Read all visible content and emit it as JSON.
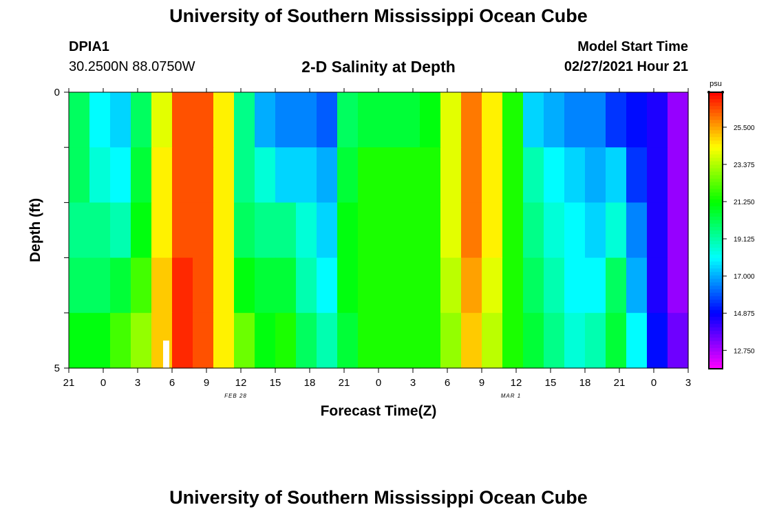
{
  "header": {
    "title": "University of Southern Mississippi Ocean Cube",
    "station": "DPIA1",
    "coordinates": "30.2500N 88.0750W",
    "subtitle": "2-D Salinity at Depth",
    "model_start_label": "Model Start Time",
    "model_start_value": "02/27/2021 Hour 21"
  },
  "footer": {
    "title": "University of Southern Mississippi Ocean Cube"
  },
  "chart_data": {
    "type": "heatmap",
    "title": "2-D Salinity at Depth",
    "xlabel": "Forecast Time(Z)",
    "ylabel": "Depth (ft)",
    "x_ticks": [
      "21",
      "0",
      "3",
      "6",
      "9",
      "12",
      "15",
      "18",
      "21",
      "0",
      "3",
      "6",
      "9",
      "12",
      "15",
      "18",
      "21",
      "0",
      "3"
    ],
    "date_labels": [
      {
        "text": "FEB 28",
        "after_tick": 4
      },
      {
        "text": "MAR 1",
        "after_tick": 12
      }
    ],
    "y_ticks": [
      "0",
      "",
      "",
      "",
      "",
      "5"
    ],
    "ylim": [
      0,
      5
    ],
    "colorbar": {
      "unit": "psu",
      "range": [
        11.7,
        27.5
      ],
      "ticks": [
        "25.500",
        "23.375",
        "21.250",
        "19.125",
        "17.000",
        "14.875",
        "12.750"
      ],
      "tick_values": [
        25.5,
        23.375,
        21.25,
        19.125,
        17.0,
        14.875,
        12.75
      ]
    },
    "hours_per_column": 3,
    "depth_layers": [
      "0-1 ft",
      "1-2 ft",
      "2-3 ft",
      "3-4 ft",
      "4-5 ft"
    ],
    "salinity_psu": [
      [
        20.0,
        18.0,
        17.5,
        20.0,
        24.0,
        26.5,
        26.5,
        24.5,
        19.5,
        17.0,
        16.5,
        16.5,
        16.0,
        20.0,
        20.5,
        20.5,
        20.5,
        21.0,
        24.0,
        26.0,
        24.5,
        21.5,
        17.5,
        17.0,
        16.5,
        16.5,
        15.5,
        15.0,
        14.5,
        13.0
      ],
      [
        20.0,
        18.5,
        18.0,
        20.5,
        24.5,
        26.5,
        26.5,
        24.5,
        19.5,
        18.5,
        17.5,
        17.5,
        17.0,
        20.5,
        21.5,
        21.5,
        21.5,
        21.5,
        24.0,
        26.0,
        24.5,
        21.5,
        19.0,
        18.0,
        17.5,
        17.0,
        17.5,
        15.5,
        14.5,
        13.0
      ],
      [
        19.5,
        19.5,
        19.0,
        21.0,
        24.5,
        26.5,
        26.5,
        24.5,
        20.0,
        19.5,
        19.5,
        18.5,
        17.5,
        21.0,
        21.5,
        21.5,
        21.5,
        21.5,
        24.0,
        26.0,
        24.5,
        21.5,
        19.5,
        18.5,
        18.0,
        17.5,
        18.5,
        16.5,
        14.5,
        13.0
      ],
      [
        20.0,
        20.0,
        20.5,
        22.0,
        25.0,
        27.0,
        26.5,
        24.5,
        21.0,
        20.5,
        20.5,
        19.0,
        18.0,
        21.0,
        21.5,
        21.5,
        21.5,
        21.5,
        23.5,
        25.5,
        24.0,
        21.5,
        20.0,
        19.0,
        18.0,
        18.0,
        20.0,
        17.0,
        14.5,
        13.0
      ],
      [
        21.0,
        21.0,
        22.0,
        23.0,
        25.0,
        27.0,
        26.5,
        24.5,
        22.5,
        21.0,
        21.5,
        20.0,
        19.0,
        20.5,
        21.5,
        21.5,
        21.5,
        21.5,
        23.0,
        25.0,
        23.5,
        21.5,
        20.5,
        19.5,
        18.5,
        19.0,
        20.5,
        18.0,
        15.0,
        13.5
      ]
    ]
  }
}
